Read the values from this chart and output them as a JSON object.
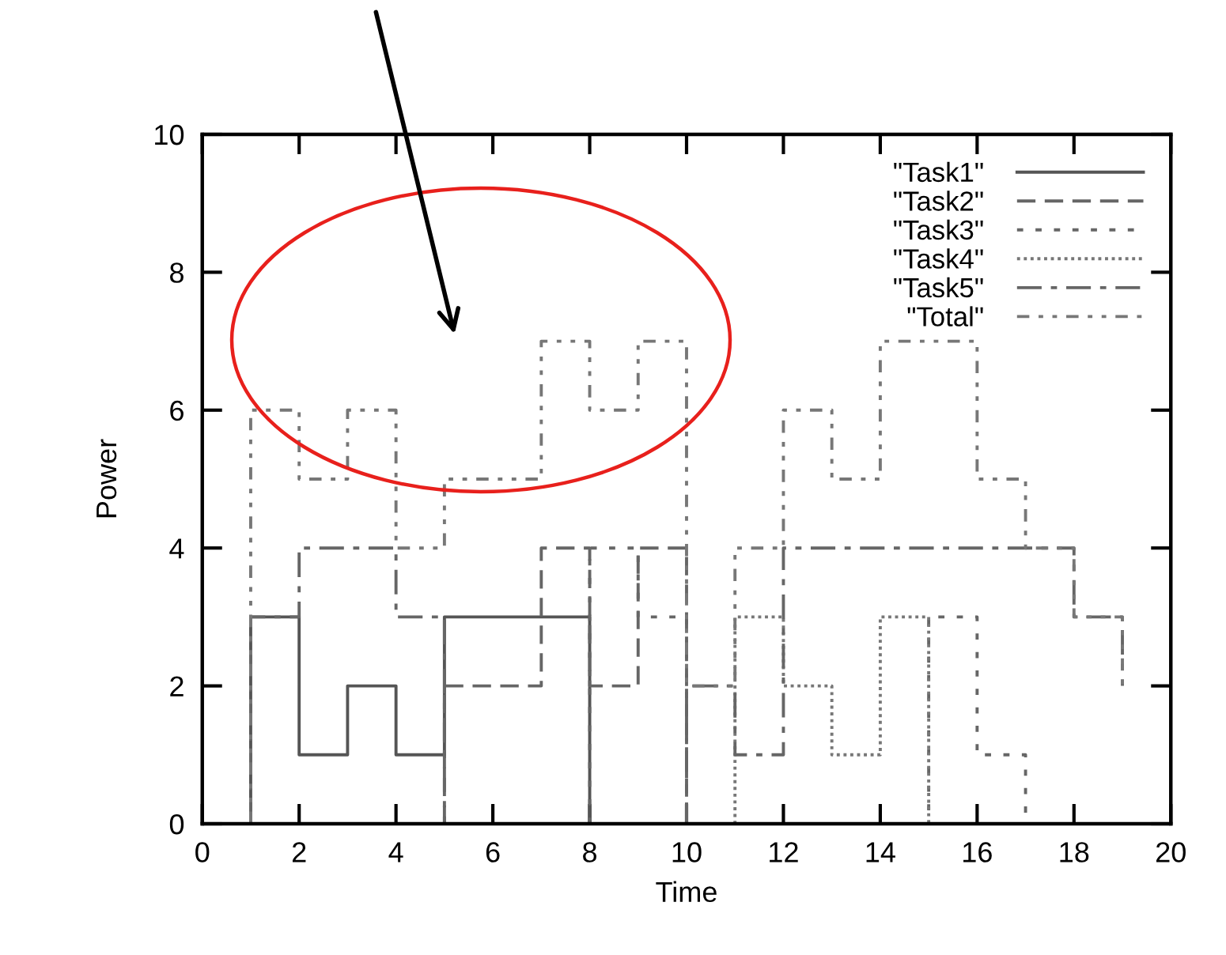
{
  "chart_data": {
    "type": "step",
    "xlabel": "Time",
    "ylabel": "Power",
    "xlim": [
      0,
      20
    ],
    "ylim": [
      0,
      10
    ],
    "xticks": [
      0,
      2,
      4,
      6,
      8,
      10,
      12,
      14,
      16,
      18,
      20
    ],
    "yticks": [
      0,
      2,
      4,
      6,
      8,
      10
    ],
    "legend": "top right",
    "series": [
      {
        "name": "\"Task1\"",
        "color": "#555555",
        "line_style": "solid",
        "x": [
          1,
          1,
          2,
          3,
          4,
          5,
          8
        ],
        "values": [
          0,
          3,
          1,
          2,
          1,
          3,
          0
        ]
      },
      {
        "name": "\"Task2\"",
        "color": "#666666",
        "line_style": "dashed",
        "x": [
          5,
          5,
          7,
          8,
          9,
          10
        ],
        "values": [
          0,
          2,
          4,
          2,
          4,
          0
        ]
      },
      {
        "name": "\"Task3\"",
        "color": "#666666",
        "line_style": "dotted",
        "x": [
          8,
          8,
          9,
          10,
          15,
          16,
          17
        ],
        "values": [
          0,
          4,
          3,
          0,
          3,
          1,
          0
        ]
      },
      {
        "name": "\"Task4\"",
        "color": "#777777",
        "line_style": "densely dotted",
        "x": [
          11,
          11,
          12,
          13,
          14,
          15
        ],
        "values": [
          0,
          3,
          2,
          1,
          3,
          0
        ]
      },
      {
        "name": "\"Task5\"",
        "color": "#666666",
        "line_style": "dashdot",
        "x": [
          1,
          1,
          2,
          4,
          5,
          10,
          11,
          12,
          18,
          19
        ],
        "values": [
          0,
          3,
          4,
          3,
          0,
          2,
          1,
          4,
          3,
          2
        ]
      },
      {
        "name": "\"Total\"",
        "color": "#777777",
        "line_style": "dashdotdot",
        "x": [
          1,
          1,
          2,
          3,
          4,
          5,
          7,
          8,
          9,
          10,
          11,
          12,
          13,
          14,
          16,
          17,
          18,
          19
        ],
        "values": [
          0,
          6,
          5,
          6,
          4,
          5,
          7,
          6,
          7,
          2,
          4,
          6,
          5,
          7,
          5,
          4,
          3,
          2
        ]
      }
    ]
  }
}
